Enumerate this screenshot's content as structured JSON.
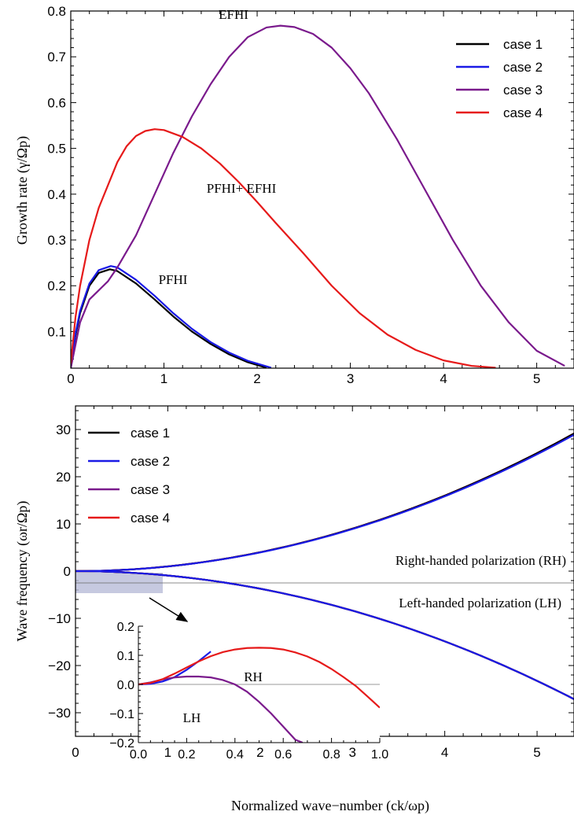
{
  "chart_data": [
    {
      "type": "line",
      "panel": "top",
      "xlabel": "",
      "ylabel": "Growth rate (γ/Ωp)",
      "xlim": [
        0,
        5.4
      ],
      "ylim": [
        0.02,
        0.8
      ],
      "x_ticks": [
        "0",
        "1",
        "2",
        "3",
        "4",
        "5"
      ],
      "y_ticks": [
        "0.1",
        "0.2",
        "0.3",
        "0.4",
        "0.5",
        "0.6",
        "0.7",
        "0.8"
      ],
      "legend_position": "top-right",
      "annotations": [
        "EFHI",
        "PFHI+ EFHI",
        "PFHI"
      ],
      "series": [
        {
          "name": "case 1",
          "color": "#000000",
          "x": [
            0,
            0.05,
            0.1,
            0.2,
            0.3,
            0.42,
            0.5,
            0.7,
            0.9,
            1.1,
            1.3,
            1.5,
            1.7,
            1.9,
            2.1
          ],
          "y": [
            0.02,
            0.09,
            0.14,
            0.2,
            0.228,
            0.236,
            0.232,
            0.205,
            0.17,
            0.133,
            0.1,
            0.073,
            0.05,
            0.033,
            0.021
          ]
        },
        {
          "name": "case 2",
          "color": "#1a1ae6",
          "x": [
            0,
            0.05,
            0.1,
            0.2,
            0.3,
            0.43,
            0.5,
            0.7,
            0.9,
            1.1,
            1.3,
            1.5,
            1.7,
            1.9,
            2.15
          ],
          "y": [
            0.02,
            0.095,
            0.145,
            0.205,
            0.234,
            0.243,
            0.24,
            0.213,
            0.178,
            0.14,
            0.106,
            0.077,
            0.054,
            0.036,
            0.021
          ]
        },
        {
          "name": "case 3",
          "color": "#7a1a8c",
          "x": [
            0,
            0.1,
            0.2,
            0.3,
            0.4,
            0.5,
            0.7,
            0.9,
            1.1,
            1.3,
            1.5,
            1.7,
            1.9,
            2.1,
            2.25,
            2.4,
            2.6,
            2.8,
            3.0,
            3.2,
            3.5,
            3.8,
            4.1,
            4.4,
            4.7,
            5.0,
            5.3
          ],
          "y": [
            0.02,
            0.12,
            0.17,
            0.19,
            0.21,
            0.24,
            0.31,
            0.4,
            0.49,
            0.57,
            0.64,
            0.7,
            0.743,
            0.764,
            0.768,
            0.765,
            0.75,
            0.72,
            0.675,
            0.62,
            0.52,
            0.41,
            0.3,
            0.2,
            0.12,
            0.058,
            0.025
          ]
        },
        {
          "name": "case 4",
          "color": "#e61a1a",
          "x": [
            0,
            0.05,
            0.1,
            0.2,
            0.3,
            0.4,
            0.5,
            0.6,
            0.7,
            0.8,
            0.9,
            1.0,
            1.2,
            1.4,
            1.6,
            1.8,
            2.0,
            2.2,
            2.5,
            2.8,
            3.1,
            3.4,
            3.7,
            4.0,
            4.3,
            4.56
          ],
          "y": [
            0.03,
            0.13,
            0.2,
            0.3,
            0.37,
            0.42,
            0.47,
            0.505,
            0.527,
            0.538,
            0.542,
            0.54,
            0.525,
            0.5,
            0.467,
            0.427,
            0.383,
            0.337,
            0.27,
            0.2,
            0.14,
            0.093,
            0.06,
            0.037,
            0.025,
            0.021
          ]
        }
      ]
    },
    {
      "type": "line",
      "panel": "bottom",
      "xlabel": "Normalized wave−number (ck/ωp)",
      "ylabel": "Wave frequency (ωr/Ωp)",
      "xlim": [
        0,
        5.4
      ],
      "ylim": [
        -35,
        35
      ],
      "x_ticks": [
        "0",
        "1",
        "2",
        "3",
        "4",
        "5"
      ],
      "y_ticks": [
        "30",
        "20",
        "10",
        "0",
        "−10",
        "−20",
        "−30"
      ],
      "legend_position": "top-left",
      "annotations": [
        "Right-handed polarization (RH)",
        "Left-handed polarization (LH)"
      ],
      "series": [
        {
          "name": "case 1",
          "color": "#000000",
          "rh_coefficient": 1.0,
          "lh_coefficient": -0.93
        },
        {
          "name": "case 2",
          "color": "#1a1ae6",
          "rh_coefficient": 0.99,
          "lh_coefficient": -0.93
        },
        {
          "name": "case 3",
          "color": "#7a1a8c",
          "rh_coefficient": 1.0,
          "lh_coefficient": -0.93
        },
        {
          "name": "case 4",
          "color": "#e61a1a",
          "rh_coefficient": 1.0,
          "lh_coefficient": -0.93
        }
      ],
      "inset": {
        "xlim": [
          0,
          1.0
        ],
        "ylim": [
          -0.2,
          0.2
        ],
        "x_ticks": [
          "0.0",
          "0.2",
          "0.4",
          "0.6",
          "0.8",
          "1.0"
        ],
        "y_ticks": [
          "0.2",
          "0.1",
          "0.0",
          "−0.1",
          "−0.2"
        ],
        "annotations": [
          "RH",
          "LH"
        ],
        "series": [
          {
            "name": "case 2",
            "color": "#1a1ae6",
            "x": [
              0,
              0.05,
              0.1,
              0.15,
              0.2,
              0.25,
              0.3
            ],
            "y": [
              0,
              0.002,
              0.01,
              0.025,
              0.05,
              0.08,
              0.113
            ]
          },
          {
            "name": "case 3",
            "color": "#7a1a8c",
            "x": [
              0,
              0.05,
              0.1,
              0.15,
              0.2,
              0.25,
              0.3,
              0.35,
              0.4,
              0.45,
              0.5,
              0.55,
              0.6,
              0.65,
              0.68
            ],
            "y": [
              0,
              0.007,
              0.017,
              0.024,
              0.027,
              0.027,
              0.024,
              0.015,
              0.0,
              -0.025,
              -0.06,
              -0.1,
              -0.145,
              -0.19,
              -0.2
            ]
          },
          {
            "name": "case 4",
            "color": "#e61a1a",
            "x": [
              0,
              0.05,
              0.1,
              0.15,
              0.2,
              0.25,
              0.3,
              0.35,
              0.4,
              0.45,
              0.5,
              0.55,
              0.6,
              0.65,
              0.7,
              0.75,
              0.8,
              0.85,
              0.9,
              0.95,
              1.0
            ],
            "y": [
              0,
              0.005,
              0.018,
              0.037,
              0.058,
              0.079,
              0.097,
              0.111,
              0.12,
              0.125,
              0.126,
              0.125,
              0.12,
              0.11,
              0.096,
              0.077,
              0.053,
              0.025,
              -0.005,
              -0.042,
              -0.08
            ]
          }
        ]
      }
    }
  ]
}
